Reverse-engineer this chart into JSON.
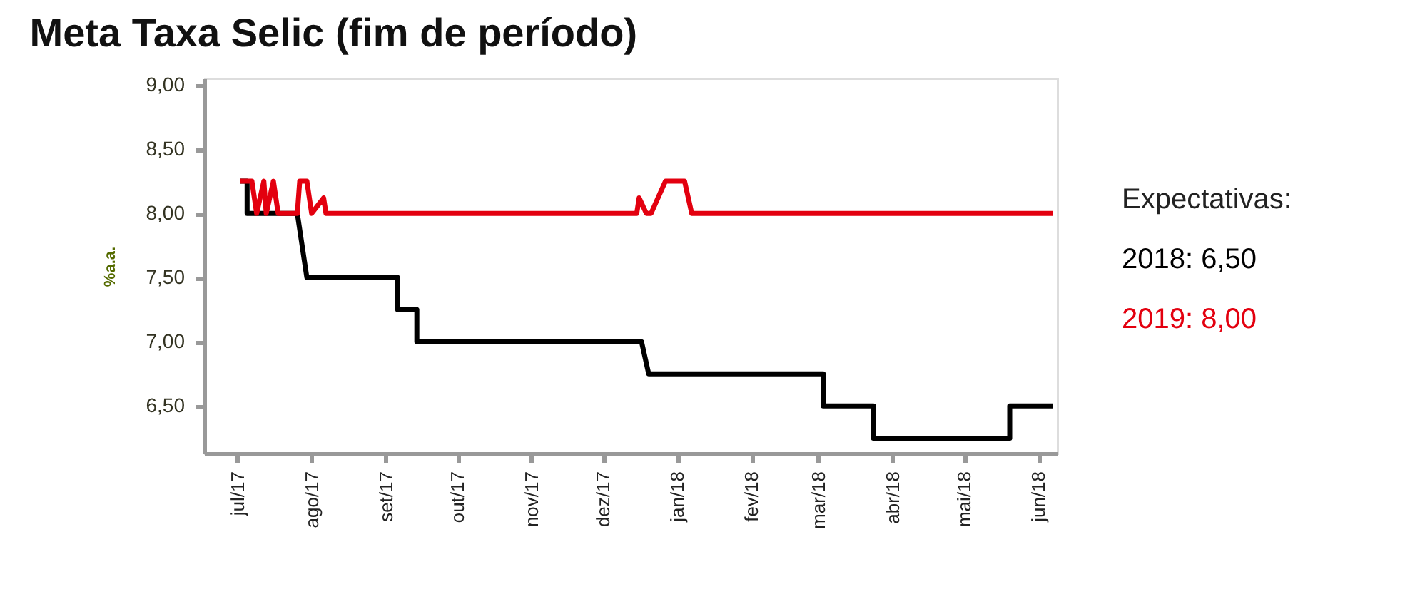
{
  "chart_data": {
    "type": "line",
    "title": "Meta Taxa Selic (fim de período)",
    "ylabel": "%a.a.",
    "xlim": [
      "2017-06-17",
      "2018-06-09"
    ],
    "xticks": [
      {
        "value": "2017-07-01",
        "label": "jul/17"
      },
      {
        "value": "2017-08-01",
        "label": "ago/17"
      },
      {
        "value": "2017-09-01",
        "label": "set/17"
      },
      {
        "value": "2017-10-01",
        "label": "out/17"
      },
      {
        "value": "2017-11-01",
        "label": "nov/17"
      },
      {
        "value": "2017-12-01",
        "label": "dez/17"
      },
      {
        "value": "2018-01-01",
        "label": "jan/18"
      },
      {
        "value": "2018-02-01",
        "label": "fev/18"
      },
      {
        "value": "2018-03-01",
        "label": "mar/18"
      },
      {
        "value": "2018-04-01",
        "label": "abr/18"
      },
      {
        "value": "2018-05-01",
        "label": "mai/18"
      },
      {
        "value": "2018-06-01",
        "label": "jun/18"
      }
    ],
    "ylim": [
      6.13,
      9.05
    ],
    "yticks": [
      {
        "value": 6.5,
        "label": "6,50"
      },
      {
        "value": 7.0,
        "label": "7,00"
      },
      {
        "value": 7.5,
        "label": "7,50"
      },
      {
        "value": 8.0,
        "label": "8,00"
      },
      {
        "value": 8.5,
        "label": "8,50"
      },
      {
        "value": 9.0,
        "label": "9,00"
      }
    ],
    "grid": false,
    "legend": "right",
    "legend_title": "Expectativas:",
    "line_style": "solid",
    "marker": "none",
    "series": [
      {
        "name": "2018: 6,50",
        "color": "#000000",
        "x": [
          "2017-07-02",
          "2017-07-05",
          "2017-07-05",
          "2017-07-26",
          "2017-07-30",
          "2017-09-06",
          "2017-09-06",
          "2017-09-14",
          "2017-09-14",
          "2017-12-17",
          "2017-12-20",
          "2018-03-03",
          "2018-03-03",
          "2018-03-24",
          "2018-03-24",
          "2018-05-20",
          "2018-05-20",
          "2018-06-07"
        ],
        "values": [
          8.25,
          8.25,
          8.0,
          8.0,
          7.5,
          7.5,
          7.25,
          7.25,
          7.0,
          7.0,
          6.75,
          6.75,
          6.5,
          6.5,
          6.25,
          6.25,
          6.5,
          6.5
        ]
      },
      {
        "name": "2019: 8,00",
        "color": "#e3000f",
        "x": [
          "2017-07-02",
          "2017-07-07",
          "2017-07-09",
          "2017-07-12",
          "2017-07-13",
          "2017-07-16",
          "2017-07-18",
          "2017-07-26",
          "2017-07-27",
          "2017-07-30",
          "2017-08-01",
          "2017-08-06",
          "2017-08-07",
          "2017-08-09",
          "2017-12-15",
          "2017-12-16",
          "2017-12-19",
          "2017-12-21",
          "2017-12-27",
          "2018-01-04",
          "2018-01-07",
          "2018-06-07"
        ],
        "values": [
          8.25,
          8.25,
          8.0,
          8.25,
          8.0,
          8.25,
          8.0,
          8.0,
          8.25,
          8.25,
          8.0,
          8.12,
          8.0,
          8.0,
          8.0,
          8.12,
          8.0,
          8.0,
          8.25,
          8.25,
          8.0,
          8.0
        ]
      }
    ]
  }
}
